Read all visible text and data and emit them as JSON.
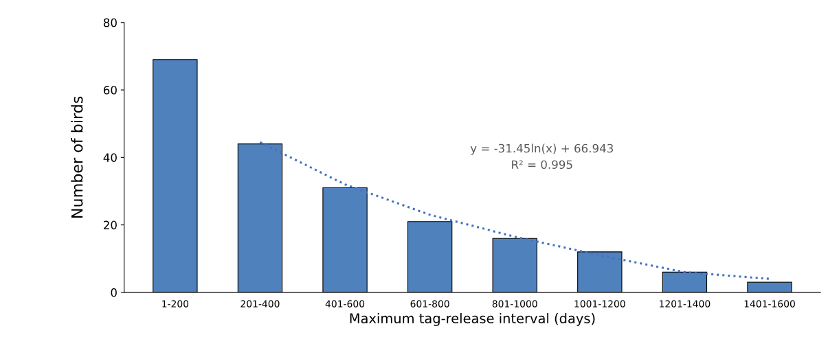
{
  "chart_data": {
    "type": "bar",
    "xlabel": "Maximum tag-release interval (days)",
    "ylabel": "Number of birds",
    "categories": [
      "1-200",
      "201-400",
      "401-600",
      "601-800",
      "801-1000",
      "1001-1200",
      "1201-1400",
      "1401-1600"
    ],
    "series": [
      {
        "color": "#4f81bd",
        "values": [
          69,
          44,
          31,
          21,
          16,
          12,
          6,
          3
        ]
      },
      {
        "type": "line",
        "color": "#4472c4",
        "line_style": "dotted",
        "x": [
          "201-400",
          "401-600",
          "601-800",
          "801-1000",
          "1001-1200",
          "1201-1400",
          "1401-1600"
        ],
        "values": [
          44.5,
          32,
          23,
          16.5,
          11,
          6,
          4
        ]
      }
    ],
    "ylim": [
      0,
      80
    ],
    "yticks": [
      0,
      20,
      40,
      60,
      80
    ],
    "grid": false,
    "legend": false,
    "annotations": [
      "y = -31.45ln(x) + 66.943\nR² = 0.995"
    ]
  }
}
